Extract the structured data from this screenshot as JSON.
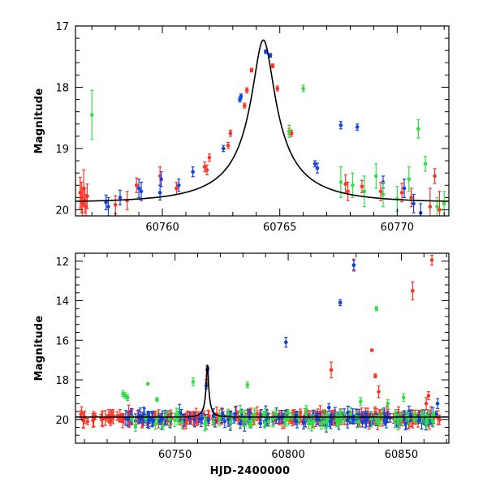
{
  "chart_data": [
    {
      "type": "scatter",
      "title": "",
      "xlabel": "",
      "ylabel": "Magnitude",
      "xlim": [
        60756.3,
        60772.2
      ],
      "ylim": [
        20.1,
        17.0
      ],
      "y_inverted": true,
      "x_ticks": [
        60760,
        60765,
        60770
      ],
      "x_tick_labels": [
        "60760",
        "60765",
        "60770"
      ],
      "y_ticks": [
        17,
        18,
        19,
        20
      ],
      "y_tick_labels": [
        "17",
        "18",
        "19",
        "20"
      ],
      "grid": false,
      "legend": "none",
      "model_curve": {
        "shape": "point-lens microlensing fit",
        "t0": 60764.3,
        "peak": 17.23,
        "baseline": 19.88,
        "tE": 3.6,
        "u0": 0.135
      },
      "series": [
        {
          "color": "#ff3322",
          "points": [
            [
              60756.5,
              19.72,
              0.25
            ],
            [
              60756.55,
              19.8,
              0.25
            ],
            [
              60756.6,
              19.9,
              0.25
            ],
            [
              60756.65,
              19.65,
              0.3
            ],
            [
              60756.7,
              19.85,
              0.2
            ],
            [
              60756.75,
              19.95,
              0.2
            ],
            [
              60756.8,
              19.78,
              0.2
            ],
            [
              60758.0,
              19.92,
              0.15
            ],
            [
              60758.5,
              19.85,
              0.15
            ],
            [
              60758.9,
              19.6,
              0.12
            ],
            [
              60759.9,
              19.45,
              0.15
            ],
            [
              60760.6,
              19.65,
              0.1
            ],
            [
              60761.8,
              19.3,
              0.08
            ],
            [
              60761.9,
              19.35,
              0.08
            ],
            [
              60762.0,
              19.15,
              0.06
            ],
            [
              60762.8,
              18.95,
              0.05
            ],
            [
              60762.9,
              18.75,
              0.05
            ],
            [
              60763.5,
              18.3,
              0.04
            ],
            [
              60763.6,
              18.05,
              0.04
            ],
            [
              60763.8,
              17.72,
              0.03
            ],
            [
              60764.7,
              17.65,
              0.03
            ],
            [
              60764.9,
              18.02,
              0.04
            ],
            [
              60765.4,
              18.72,
              0.05
            ],
            [
              60765.5,
              18.75,
              0.05
            ],
            [
              60767.8,
              19.58,
              0.15
            ],
            [
              60767.9,
              19.7,
              0.15
            ],
            [
              60768.5,
              19.62,
              0.1
            ],
            [
              60769.3,
              19.7,
              0.15
            ],
            [
              60770.2,
              19.72,
              0.15
            ],
            [
              60770.6,
              19.8,
              0.15
            ],
            [
              60771.4,
              19.95,
              0.3
            ],
            [
              60771.6,
              19.45,
              0.12
            ],
            [
              60771.8,
              20.0,
              0.3
            ]
          ]
        },
        {
          "color": "#1144dd",
          "points": [
            [
              60757.6,
              19.88,
              0.12
            ],
            [
              60757.7,
              19.95,
              0.15
            ],
            [
              60758.2,
              19.8,
              0.12
            ],
            [
              60759.0,
              19.65,
              0.15
            ],
            [
              60759.1,
              19.7,
              0.15
            ],
            [
              60759.9,
              19.72,
              0.12
            ],
            [
              60759.95,
              19.5,
              0.12
            ],
            [
              60760.7,
              19.6,
              0.1
            ],
            [
              60761.3,
              19.38,
              0.08
            ],
            [
              60762.6,
              19.0,
              0.05
            ],
            [
              60763.3,
              18.2,
              0.04
            ],
            [
              60763.35,
              18.15,
              0.04
            ],
            [
              60764.4,
              17.42,
              0.03
            ],
            [
              60764.6,
              17.48,
              0.03
            ],
            [
              60766.5,
              19.25,
              0.05
            ],
            [
              60766.6,
              19.32,
              0.08
            ],
            [
              60767.6,
              18.62,
              0.06
            ],
            [
              60768.3,
              18.65,
              0.05
            ],
            [
              60769.4,
              19.55,
              0.1
            ],
            [
              60770.3,
              19.65,
              0.15
            ],
            [
              60770.7,
              19.9,
              0.15
            ],
            [
              60771.0,
              20.05,
              0.15
            ]
          ]
        },
        {
          "color": "#33dd44",
          "points": [
            [
              60757.0,
              18.45,
              0.4
            ],
            [
              60765.4,
              18.72,
              0.1
            ],
            [
              60766.0,
              18.02,
              0.05
            ],
            [
              60767.6,
              19.55,
              0.25
            ],
            [
              60768.1,
              19.6,
              0.2
            ],
            [
              60768.6,
              19.7,
              0.25
            ],
            [
              60769.1,
              19.45,
              0.2
            ],
            [
              60769.4,
              19.75,
              0.2
            ],
            [
              60770.0,
              19.82,
              0.2
            ],
            [
              60770.5,
              19.5,
              0.2
            ],
            [
              60770.9,
              18.68,
              0.15
            ],
            [
              60771.2,
              19.25,
              0.12
            ],
            [
              60771.7,
              19.95,
              0.15
            ],
            [
              60772.0,
              19.9,
              0.2
            ]
          ]
        }
      ]
    },
    {
      "type": "scatter",
      "title": "",
      "xlabel": "HJD-2400000",
      "ylabel": "Magnitude",
      "xlim": [
        60706.0,
        60871.0
      ],
      "ylim": [
        21.2,
        11.6
      ],
      "y_inverted": true,
      "x_ticks": [
        60750,
        60800,
        60850
      ],
      "x_tick_labels": [
        "60750",
        "60800",
        "60850"
      ],
      "y_ticks": [
        12,
        14,
        16,
        18,
        20
      ],
      "y_tick_labels": [
        "12",
        "14",
        "16",
        "18",
        "20"
      ],
      "grid": false,
      "legend": "none",
      "model_curve": {
        "shape": "point-lens microlensing fit",
        "t0": 60764.3,
        "peak": 17.23,
        "baseline": 19.88,
        "tE": 3.6,
        "u0": 0.135
      },
      "series": [
        {
          "color": "#ff3322",
          "baseline_scatter": {
            "x_start": 60708,
            "x_end": 60867,
            "count": 260,
            "mean": 19.92,
            "spread": 0.22
          },
          "points": [
            [
              60829.0,
              12.2,
              0.3
            ],
            [
              60764.2,
              17.5,
              0.2
            ],
            [
              60764.0,
              18.0,
              0.2
            ],
            [
              60819.0,
              17.5,
              0.4
            ],
            [
              60837.0,
              16.5,
              0.05
            ],
            [
              60838.5,
              17.8,
              0.1
            ],
            [
              60840.0,
              18.6,
              0.3
            ],
            [
              60855.0,
              13.5,
              0.45
            ],
            [
              60863.5,
              11.95,
              0.25
            ],
            [
              60862.0,
              18.8,
              0.2
            ],
            [
              60861.0,
              19.2,
              0.3
            ]
          ]
        },
        {
          "color": "#1144dd",
          "baseline_scatter": {
            "x_start": 60728,
            "x_end": 60867,
            "count": 150,
            "mean": 19.95,
            "spread": 0.28
          },
          "points": [
            [
              60829.0,
              12.2,
              0.25
            ],
            [
              60823.0,
              14.1,
              0.15
            ],
            [
              60799.0,
              16.1,
              0.25
            ],
            [
              60764.4,
              17.45,
              0.1
            ],
            [
              60763.8,
              18.3,
              0.15
            ],
            [
              60866.0,
              19.2,
              0.25
            ],
            [
              60818.0,
              19.4,
              0.2
            ]
          ]
        },
        {
          "color": "#33dd44",
          "baseline_scatter": {
            "x_start": 60728,
            "x_end": 60867,
            "count": 90,
            "mean": 19.95,
            "spread": 0.35
          },
          "points": [
            [
              60727.0,
              18.7,
              0.15
            ],
            [
              60728.0,
              18.8,
              0.15
            ],
            [
              60729.0,
              18.9,
              0.15
            ],
            [
              60738.0,
              18.2,
              0.05
            ],
            [
              60742.0,
              19.0,
              0.1
            ],
            [
              60758.0,
              18.1,
              0.2
            ],
            [
              60782.0,
              18.25,
              0.15
            ],
            [
              60839.0,
              14.4,
              0.1
            ],
            [
              60844.0,
              19.2,
              0.2
            ],
            [
              60851.0,
              18.9,
              0.2
            ],
            [
              60808.0,
              19.5,
              0.2
            ],
            [
              60832.0,
              19.1,
              0.2
            ]
          ]
        }
      ]
    }
  ]
}
